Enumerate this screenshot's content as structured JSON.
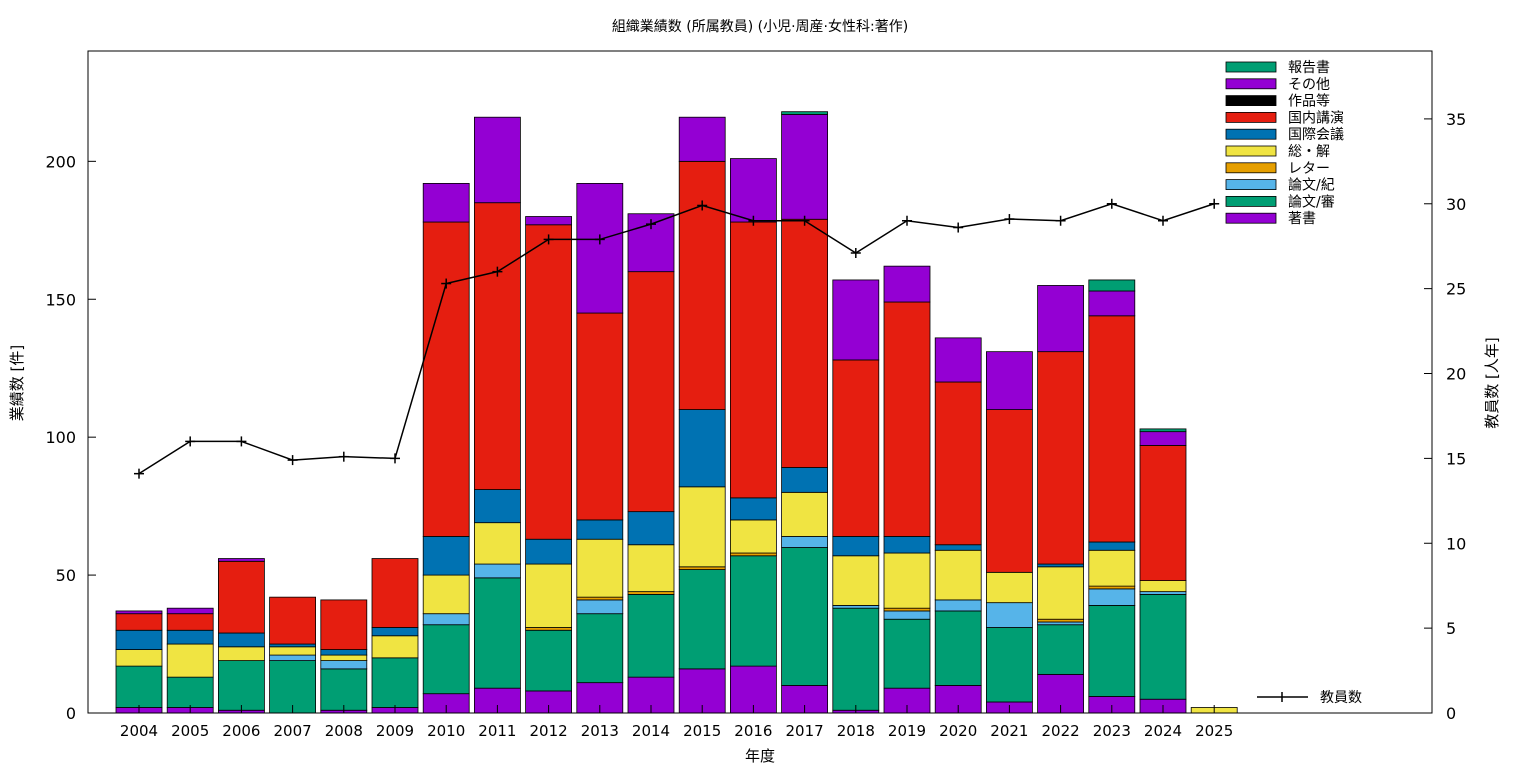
{
  "chart_data": {
    "type": "bar",
    "stacked": true,
    "title": "組織業績数 (所属教員) (小児·周産·女性科:著作)",
    "xlabel": "年度",
    "ylabel": "業績数 [件]",
    "y2label": "教員数 [人年]",
    "categories": [
      "2004",
      "2005",
      "2006",
      "2007",
      "2008",
      "2009",
      "2010",
      "2011",
      "2012",
      "2013",
      "2014",
      "2015",
      "2016",
      "2017",
      "2018",
      "2019",
      "2020",
      "2021",
      "2022",
      "2023",
      "2024",
      "2025"
    ],
    "ylim": [
      0,
      240
    ],
    "yticks": [
      0,
      50,
      100,
      150,
      200
    ],
    "y2lim": [
      0,
      39
    ],
    "y2ticks": [
      0,
      5,
      10,
      15,
      20,
      25,
      30,
      35
    ],
    "legend_position": "top-right",
    "series": [
      {
        "name": "著書",
        "color": "#9400d3",
        "values": [
          2,
          2,
          1,
          0,
          1,
          2,
          7,
          9,
          8,
          11,
          13,
          16,
          17,
          10,
          1,
          9,
          10,
          4,
          14,
          6,
          5,
          0
        ]
      },
      {
        "name": "論文/審",
        "color": "#009e73",
        "values": [
          15,
          11,
          18,
          19,
          15,
          18,
          25,
          40,
          22,
          25,
          30,
          36,
          40,
          50,
          37,
          25,
          27,
          27,
          18,
          33,
          38,
          0
        ]
      },
      {
        "name": "論文/紀",
        "color": "#56b4e9",
        "values": [
          0,
          0,
          0,
          2,
          3,
          0,
          4,
          5,
          0,
          5,
          0,
          0,
          0,
          4,
          1,
          3,
          4,
          9,
          1,
          6,
          1,
          0
        ]
      },
      {
        "name": "レター",
        "color": "#e69f00",
        "values": [
          0,
          0,
          0,
          0,
          0,
          0,
          0,
          0,
          1,
          1,
          1,
          1,
          1,
          0,
          0,
          1,
          0,
          0,
          1,
          1,
          0,
          0
        ]
      },
      {
        "name": "総・解",
        "color": "#f0e442",
        "values": [
          6,
          12,
          5,
          3,
          2,
          8,
          14,
          15,
          23,
          21,
          17,
          29,
          12,
          16,
          18,
          20,
          18,
          11,
          19,
          13,
          4,
          2
        ]
      },
      {
        "name": "国際会議",
        "color": "#0072b2",
        "values": [
          7,
          5,
          5,
          1,
          2,
          3,
          14,
          12,
          9,
          7,
          12,
          28,
          8,
          9,
          7,
          6,
          2,
          0,
          1,
          3,
          0,
          0
        ]
      },
      {
        "name": "国内講演",
        "color": "#e51e10",
        "values": [
          6,
          6,
          26,
          17,
          18,
          25,
          114,
          104,
          114,
          75,
          87,
          90,
          100,
          90,
          64,
          85,
          59,
          59,
          77,
          82,
          49,
          0
        ]
      },
      {
        "name": "作品等",
        "color": "#000000",
        "values": [
          0,
          0,
          0,
          0,
          0,
          0,
          0,
          0,
          0,
          0,
          0,
          0,
          0,
          0,
          0,
          0,
          0,
          0,
          0,
          0,
          0,
          0
        ]
      },
      {
        "name": "その他",
        "color": "#9400d3",
        "values": [
          1,
          2,
          1,
          0,
          0,
          0,
          14,
          31,
          3,
          47,
          21,
          16,
          23,
          38,
          29,
          13,
          16,
          21,
          24,
          9,
          5,
          0
        ]
      },
      {
        "name": "報告書",
        "color": "#009e73",
        "values": [
          0,
          0,
          0,
          0,
          0,
          0,
          0,
          0,
          0,
          0,
          0,
          0,
          0,
          1,
          0,
          0,
          0,
          0,
          0,
          4,
          1,
          0
        ]
      }
    ],
    "line_series": {
      "name": "教員数",
      "axis": "y2",
      "color": "#000000",
      "values": [
        14.1,
        16.0,
        16.0,
        14.9,
        15.1,
        15.0,
        25.3,
        26.0,
        27.9,
        27.9,
        28.8,
        29.9,
        29.0,
        29.0,
        27.1,
        29.0,
        28.6,
        29.1,
        29.0,
        30.0,
        29.0,
        30.0
      ]
    }
  }
}
